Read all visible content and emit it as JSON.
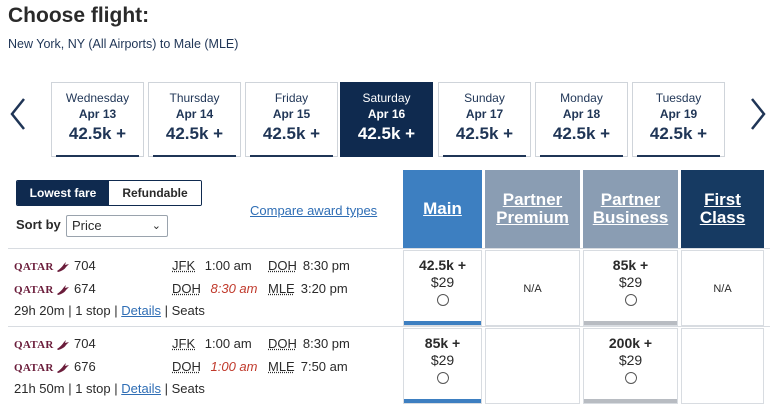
{
  "page": {
    "title": "Choose flight:",
    "route": "New York, NY (All Airports) to Male (MLE)"
  },
  "dates": [
    {
      "dow": "Wednesday",
      "date": "Apr 13",
      "points": "42.5k +"
    },
    {
      "dow": "Thursday",
      "date": "Apr 14",
      "points": "42.5k +"
    },
    {
      "dow": "Friday",
      "date": "Apr 15",
      "points": "42.5k +"
    },
    {
      "dow": "Saturday",
      "date": "Apr 16",
      "points": "42.5k +",
      "selected": true
    },
    {
      "dow": "Sunday",
      "date": "Apr 17",
      "points": "42.5k +"
    },
    {
      "dow": "Monday",
      "date": "Apr 18",
      "points": "42.5k +"
    },
    {
      "dow": "Tuesday",
      "date": "Apr 19",
      "points": "42.5k +"
    }
  ],
  "fare_toggle": {
    "lowest": "Lowest fare",
    "refundable": "Refundable"
  },
  "sort": {
    "label": "Sort by",
    "value": "Price"
  },
  "compare_link": "Compare award types",
  "cabins": [
    {
      "line1": "Main",
      "line2": "",
      "color": "#3d7fc1"
    },
    {
      "line1": "Partner",
      "line2": "Premium",
      "color": "#8a9db3"
    },
    {
      "line1": "Partner",
      "line2": "Business",
      "color": "#8a9db3"
    },
    {
      "line1": "First",
      "line2": "Class",
      "color": "#163a62"
    }
  ],
  "airline_logo_text": "QATAR",
  "flights": [
    {
      "segments": [
        {
          "flight": "704",
          "from": "JFK",
          "dep": "1:00 am",
          "dep_red": false,
          "to": "DOH",
          "arr": "8:30 pm"
        },
        {
          "flight": "674",
          "from": "DOH",
          "dep": "8:30 am",
          "dep_red": true,
          "to": "MLE",
          "arr": "3:20 pm"
        }
      ],
      "duration": "29h 20m",
      "stops": "1 stop",
      "details": "Details",
      "seats": "Seats",
      "fares": [
        {
          "points": "42.5k +",
          "usd": "$29",
          "bar": "#3d7fc1"
        },
        {
          "na": "N/A"
        },
        {
          "points": "85k +",
          "usd": "$29",
          "bar": "#b8bcc2"
        },
        {
          "na": "N/A"
        }
      ]
    },
    {
      "segments": [
        {
          "flight": "704",
          "from": "JFK",
          "dep": "1:00 am",
          "dep_red": false,
          "to": "DOH",
          "arr": "8:30 pm"
        },
        {
          "flight": "676",
          "from": "DOH",
          "dep": "1:00 am",
          "dep_red": true,
          "to": "MLE",
          "arr": "7:50 am"
        }
      ],
      "duration": "21h 50m",
      "stops": "1 stop",
      "details": "Details",
      "seats": "Seats",
      "fares": [
        {
          "points": "85k +",
          "usd": "$29",
          "bar": "#3d7fc1"
        },
        {
          "na": ""
        },
        {
          "points": "200k +",
          "usd": "$29",
          "bar": "#b8bcc2"
        },
        {
          "na": ""
        }
      ]
    }
  ]
}
